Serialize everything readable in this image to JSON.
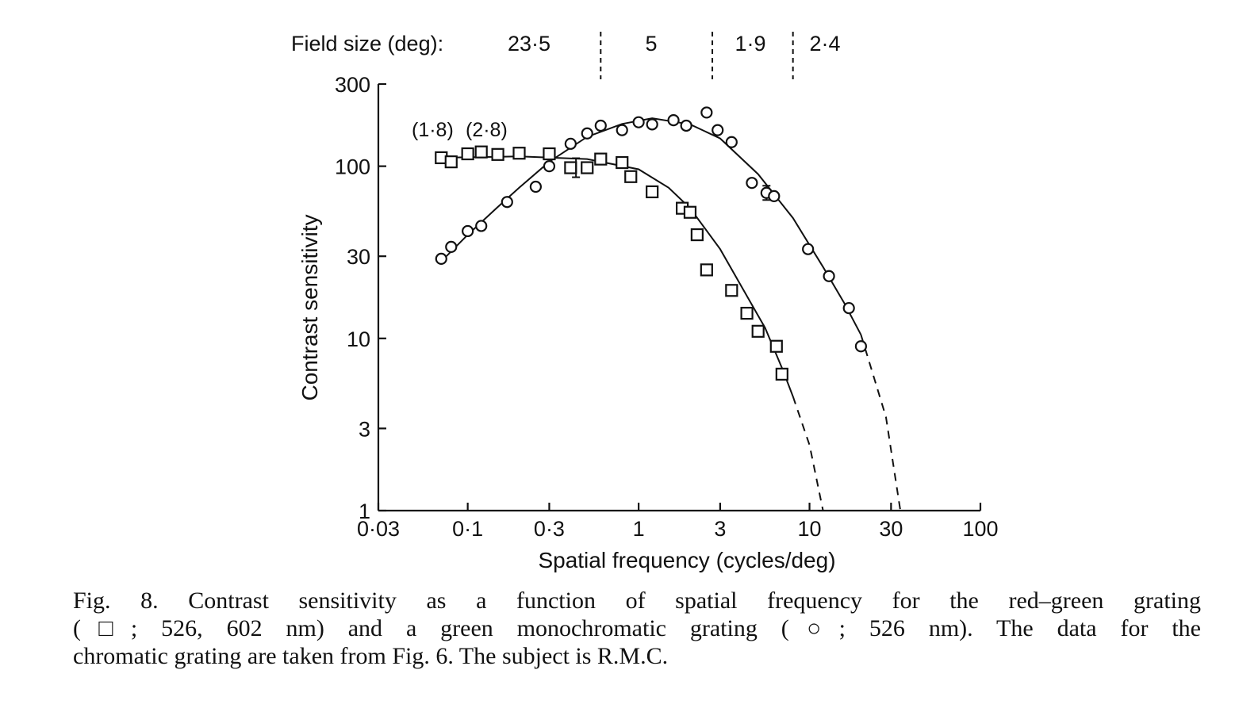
{
  "chart_data": {
    "type": "scatter",
    "x_scale": "log",
    "y_scale": "log",
    "xlabel": "Spatial frequency (cycles/deg)",
    "ylabel": "Contrast sensitivity",
    "xlim": [
      0.03,
      100
    ],
    "ylim": [
      1,
      300
    ],
    "x_ticks": [
      0.03,
      0.1,
      0.3,
      1,
      3,
      10,
      30,
      100
    ],
    "x_tick_labels": [
      "0·03",
      "0·1",
      "0·3",
      "1",
      "3",
      "10",
      "30",
      "100"
    ],
    "y_ticks": [
      1,
      3,
      10,
      30,
      100,
      300
    ],
    "y_tick_labels": [
      "1",
      "3",
      "10",
      "30",
      "100",
      "300"
    ],
    "field_size": {
      "label": "Field size (deg):",
      "segments": [
        "23·5",
        "5",
        "1·9",
        "2·4"
      ],
      "boundaries": [
        0.6,
        2.7,
        8.0
      ]
    },
    "annotations": [
      "(1·8)",
      "(2·8)"
    ],
    "series": [
      {
        "marker": "square",
        "points": [
          [
            0.07,
            112
          ],
          [
            0.08,
            106
          ],
          [
            0.1,
            118
          ],
          [
            0.12,
            121
          ],
          [
            0.15,
            117
          ],
          [
            0.2,
            119
          ],
          [
            0.3,
            118
          ],
          [
            0.4,
            98
          ],
          [
            0.5,
            98
          ],
          [
            0.6,
            110
          ],
          [
            0.8,
            105
          ],
          [
            0.9,
            87
          ],
          [
            1.2,
            71
          ],
          [
            1.8,
            57
          ],
          [
            2.0,
            54
          ],
          [
            2.2,
            40
          ],
          [
            2.5,
            25
          ],
          [
            3.5,
            19
          ],
          [
            4.3,
            14
          ],
          [
            5.0,
            11
          ],
          [
            6.4,
            9
          ],
          [
            6.9,
            6.2
          ]
        ],
        "fit": [
          [
            0.07,
            112
          ],
          [
            0.2,
            114
          ],
          [
            0.5,
            110
          ],
          [
            1.0,
            96
          ],
          [
            1.5,
            75
          ],
          [
            2.0,
            57
          ],
          [
            3.0,
            33
          ],
          [
            4.0,
            20
          ],
          [
            5.5,
            11.5
          ],
          [
            7.0,
            6.5
          ],
          [
            8.0,
            4.6
          ]
        ],
        "fit_extension": [
          [
            8.0,
            4.6
          ],
          [
            10.0,
            2.4
          ],
          [
            12.0,
            1.0
          ]
        ]
      },
      {
        "marker": "circle",
        "points": [
          [
            0.07,
            29
          ],
          [
            0.08,
            34
          ],
          [
            0.1,
            42
          ],
          [
            0.12,
            45
          ],
          [
            0.17,
            62
          ],
          [
            0.25,
            76
          ],
          [
            0.3,
            100
          ],
          [
            0.4,
            135
          ],
          [
            0.5,
            155
          ],
          [
            0.6,
            172
          ],
          [
            0.8,
            162
          ],
          [
            1.0,
            180
          ],
          [
            1.2,
            175
          ],
          [
            1.6,
            185
          ],
          [
            1.9,
            172
          ],
          [
            2.5,
            205
          ],
          [
            2.9,
            162
          ],
          [
            3.5,
            138
          ],
          [
            4.6,
            80
          ],
          [
            5.6,
            70
          ],
          [
            6.2,
            67
          ],
          [
            9.8,
            33
          ],
          [
            13.0,
            23
          ],
          [
            17.0,
            15
          ],
          [
            20.0,
            9
          ]
        ],
        "error_bars": [
          [
            0.43,
            98,
            12
          ],
          [
            5.6,
            70,
            9
          ]
        ],
        "fit": [
          [
            0.07,
            28
          ],
          [
            0.1,
            40
          ],
          [
            0.15,
            58
          ],
          [
            0.2,
            75
          ],
          [
            0.3,
            106
          ],
          [
            0.5,
            148
          ],
          [
            0.8,
            176
          ],
          [
            1.2,
            190
          ],
          [
            2.0,
            175
          ],
          [
            3.0,
            145
          ],
          [
            5.0,
            90
          ],
          [
            8.0,
            50
          ],
          [
            12.0,
            26
          ],
          [
            16.0,
            16
          ],
          [
            20.0,
            10.5
          ]
        ],
        "fit_extension": [
          [
            20.0,
            10.5
          ],
          [
            28.0,
            3.5
          ],
          [
            34.0,
            1.0
          ]
        ]
      }
    ]
  },
  "caption": {
    "lines": [
      "Fig. 8. Contrast sensitivity as a function of spatial frequency for the red–green grating",
      "(□; 526, 602 nm) and a green monochromatic grating (○; 526 nm). The data for the",
      "chromatic grating are taken from Fig. 6. The subject is R.M.C."
    ]
  }
}
